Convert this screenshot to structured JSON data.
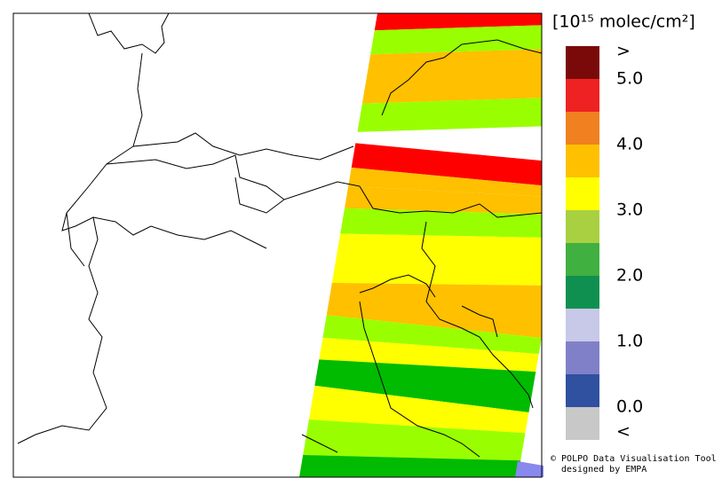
{
  "legend": {
    "title": "[10¹⁵ molec/cm²]",
    "colors": [
      "#7a0a0a",
      "#ee2222",
      "#f08020",
      "#ffc000",
      "#ffff00",
      "#a8d040",
      "#40b040",
      "#109050",
      "#c8c8e8",
      "#8080c8",
      "#3050a0",
      "#c8c8c8"
    ],
    "labels": [
      ">",
      "5.0",
      "4.0",
      "3.0",
      "2.0",
      "1.0",
      "0.0",
      "<"
    ]
  },
  "credits": [
    "© POLPO Data Visualisation Tool",
    "designed by EMPA"
  ]
}
